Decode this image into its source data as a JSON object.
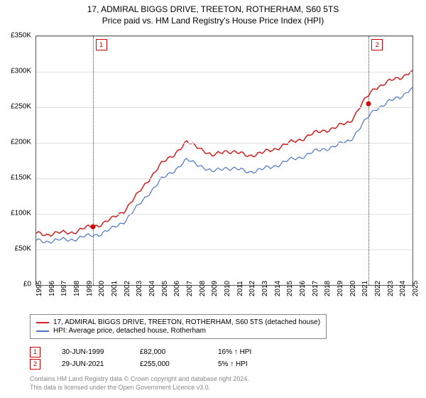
{
  "title": {
    "line1": "17, ADMIRAL BIGGS DRIVE, TREETON, ROTHERHAM, S60 5TS",
    "line2": "Price paid vs. HM Land Registry's House Price Index (HPI)"
  },
  "chart": {
    "type": "line",
    "background_color": "#ffffff",
    "grid_color": "#e0e0e0",
    "border_color": "#555555",
    "ylim": [
      0,
      350000
    ],
    "ytick_step": 50000,
    "ytick_prefix": "£",
    "ytick_suffix": "K",
    "yticks": [
      "£0",
      "£50K",
      "£100K",
      "£150K",
      "£200K",
      "£250K",
      "£300K",
      "£350K"
    ],
    "x_start_year": 1995,
    "x_end_year": 2025,
    "xticks": [
      1995,
      1996,
      1997,
      1998,
      1999,
      2000,
      2001,
      2002,
      2003,
      2004,
      2005,
      2006,
      2007,
      2008,
      2009,
      2010,
      2011,
      2012,
      2013,
      2014,
      2015,
      2016,
      2017,
      2018,
      2019,
      2020,
      2021,
      2022,
      2023,
      2024,
      2025
    ],
    "series": [
      {
        "id": "price_paid",
        "label": "17, ADMIRAL BIGGS DRIVE, TREETON, ROTHERHAM, S60 5TS (detached house)",
        "color": "#d02020",
        "line_width": 1.5,
        "values_by_year": {
          "1995": 72000,
          "1996": 72000,
          "1997": 73000,
          "1998": 75000,
          "1999": 80000,
          "2000": 85000,
          "2001": 92000,
          "2002": 105000,
          "2003": 125000,
          "2004": 150000,
          "2005": 170000,
          "2006": 185000,
          "2007": 200000,
          "2008": 195000,
          "2009": 180000,
          "2010": 190000,
          "2011": 185000,
          "2012": 183000,
          "2013": 185000,
          "2014": 192000,
          "2015": 198000,
          "2016": 205000,
          "2017": 212000,
          "2018": 218000,
          "2019": 222000,
          "2020": 230000,
          "2021": 255000,
          "2022": 278000,
          "2023": 285000,
          "2024": 292000,
          "2025": 302000
        }
      },
      {
        "id": "hpi",
        "label": "HPI: Average price, detached house, Rotherham",
        "color": "#4a74c9",
        "line_width": 1.2,
        "values_by_year": {
          "1995": 62000,
          "1996": 62000,
          "1997": 63000,
          "1998": 65000,
          "1999": 68000,
          "2000": 72000,
          "2001": 78000,
          "2002": 90000,
          "2003": 108000,
          "2004": 130000,
          "2005": 148000,
          "2006": 162000,
          "2007": 175000,
          "2008": 170000,
          "2009": 158000,
          "2010": 166000,
          "2011": 162000,
          "2012": 160000,
          "2013": 162000,
          "2014": 168000,
          "2015": 174000,
          "2016": 180000,
          "2017": 186000,
          "2018": 192000,
          "2019": 196000,
          "2020": 204000,
          "2021": 225000,
          "2022": 248000,
          "2023": 256000,
          "2024": 265000,
          "2025": 278000
        }
      }
    ],
    "markers": [
      {
        "n": "1",
        "year": 1999.5,
        "y_value": 82000
      },
      {
        "n": "2",
        "year": 2021.5,
        "y_value": 255000
      }
    ],
    "marker_color": "#cc0000"
  },
  "legend": {
    "items": [
      {
        "color": "#d02020",
        "label": "17, ADMIRAL BIGGS DRIVE, TREETON, ROTHERHAM, S60 5TS (detached house)"
      },
      {
        "color": "#4a74c9",
        "label": "HPI: Average price, detached house, Rotherham"
      }
    ]
  },
  "events": [
    {
      "n": "1",
      "date": "30-JUN-1999",
      "price": "£82,000",
      "delta": "16% ↑ HPI"
    },
    {
      "n": "2",
      "date": "29-JUN-2021",
      "price": "£255,000",
      "delta": "5% ↑ HPI"
    }
  ],
  "footnote": {
    "line1": "Contains HM Land Registry data © Crown copyright and database right 2024.",
    "line2": "This data is licensed under the Open Government Licence v3.0."
  }
}
